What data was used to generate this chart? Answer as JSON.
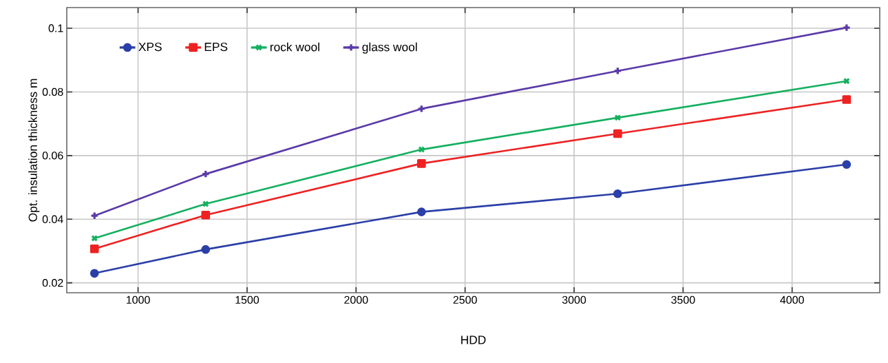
{
  "chart_data": {
    "type": "line",
    "xlabel": "HDD",
    "ylabel": "Opt. insulation thickness m",
    "x": [
      800,
      1310,
      2300,
      3200,
      4250
    ],
    "series": [
      {
        "name": "XPS",
        "color": "#2b3fa8",
        "marker": "circle",
        "values": [
          0.023,
          0.0305,
          0.0423,
          0.048,
          0.0572
        ]
      },
      {
        "name": "EPS",
        "color": "#ee2222",
        "marker": "square",
        "values": [
          0.0307,
          0.0413,
          0.0575,
          0.0669,
          0.0776
        ]
      },
      {
        "name": "rock wool",
        "color": "#15b060",
        "marker": "cross",
        "values": [
          0.034,
          0.0448,
          0.0619,
          0.0719,
          0.0834
        ]
      },
      {
        "name": "glass wool",
        "color": "#5a3aa8",
        "marker": "plus",
        "values": [
          0.0411,
          0.0542,
          0.0747,
          0.0866,
          0.1002
        ]
      }
    ],
    "xlim": [
      673,
      4402
    ],
    "ylim": [
      0.0169,
      0.1065
    ],
    "xticks": [
      1000,
      1500,
      2000,
      2500,
      3000,
      3500,
      4000
    ],
    "yticks": [
      0.02,
      0.04,
      0.06,
      0.08,
      0.1
    ],
    "grid": true,
    "legend": "top left",
    "line_style": "solid"
  }
}
